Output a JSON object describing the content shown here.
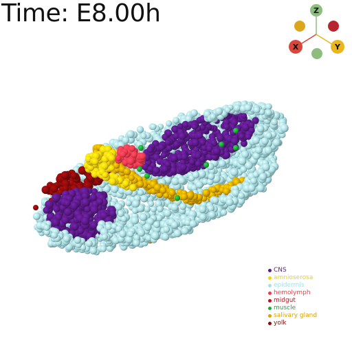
{
  "time_label": "Time: E8.00h",
  "axes": {
    "z_label": "Z",
    "x_label": "X",
    "y_label": "Y",
    "colors": {
      "z": "#8dbe7d",
      "x": "#d9473c",
      "y": "#e9b61d",
      "neg_x": "#b8252c",
      "neg_y": "#dba61c",
      "neg_z": "#8dbe7d"
    }
  },
  "legend": [
    {
      "label": "CNS",
      "color": "#5a1a86"
    },
    {
      "label": "amnioserosa",
      "color": "#f2d20f"
    },
    {
      "label": "epidermis",
      "color": "#a9dde2"
    },
    {
      "label": "hemolymph",
      "color": "#ef3b4f"
    },
    {
      "label": "midgut",
      "color": "#c2101c"
    },
    {
      "label": "muscle",
      "color": "#1fa83a"
    },
    {
      "label": "salivary gland",
      "color": "#d9a300"
    },
    {
      "label": "yolk",
      "color": "#8a0b0b"
    }
  ]
}
